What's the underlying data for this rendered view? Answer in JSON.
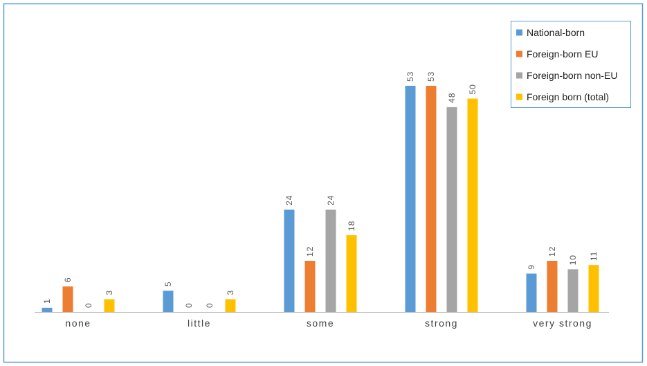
{
  "chart_data": {
    "type": "bar",
    "categories": [
      "none",
      "little",
      "some",
      "strong",
      "very strong"
    ],
    "series": [
      {
        "name": "National-born",
        "color": "#5b9bd5",
        "values": [
          1,
          5,
          24,
          53,
          9
        ]
      },
      {
        "name": "Foreign-born EU",
        "color": "#ed7d31",
        "values": [
          6,
          0,
          12,
          53,
          12
        ]
      },
      {
        "name": "Foreign-born non-EU",
        "color": "#a5a5a5",
        "values": [
          0,
          0,
          24,
          48,
          10
        ]
      },
      {
        "name": "Foreign born (total)",
        "color": "#ffc000",
        "values": [
          3,
          3,
          18,
          50,
          11
        ]
      }
    ],
    "legend": "top-right"
  }
}
